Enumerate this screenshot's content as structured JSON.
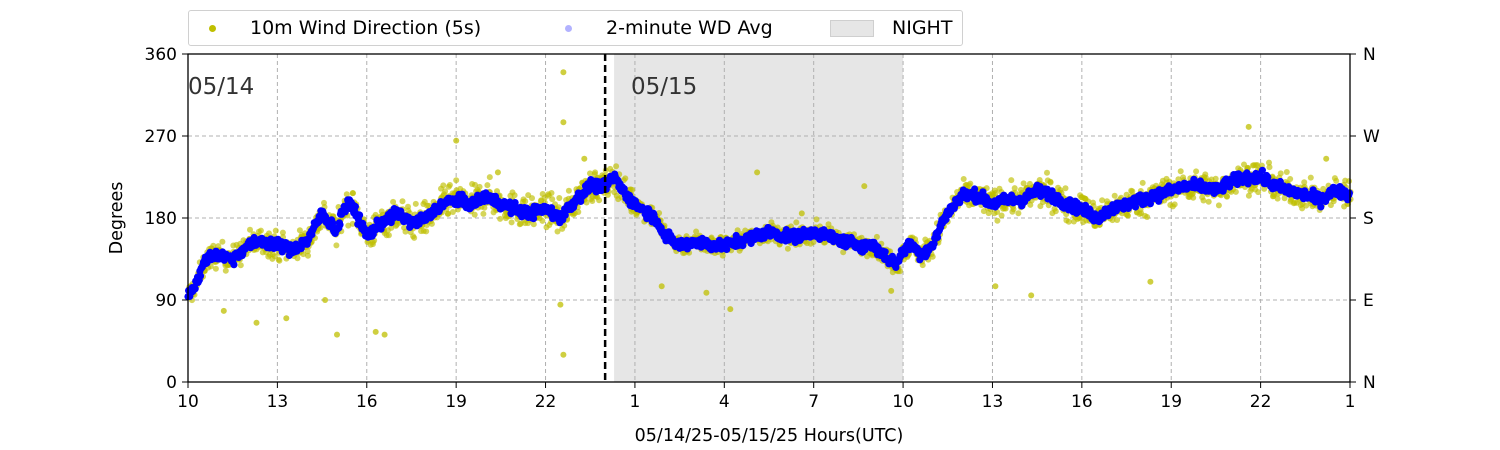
{
  "legend": {
    "items": [
      {
        "label": "10m Wind Direction (5s)",
        "color": "#bfbf00"
      },
      {
        "label": "2-minute WD Avg",
        "color": "#0000ff"
      },
      {
        "label": "NIGHT",
        "color": "#e6e6e6"
      }
    ]
  },
  "chart_data": {
    "type": "scatter",
    "title": "",
    "xlabel": "05/14/25-05/15/25  Hours(UTC)",
    "ylabel": "Degrees",
    "ylim": [
      0,
      360
    ],
    "x_ticks": [
      "10",
      "13",
      "16",
      "19",
      "22",
      "1",
      "4",
      "7",
      "10",
      "13",
      "16",
      "19",
      "22",
      "1"
    ],
    "y_ticks": [
      "0",
      "90",
      "180",
      "270",
      "360"
    ],
    "y2_ticks": [
      "N",
      "E",
      "S",
      "W",
      "N"
    ],
    "grid": true,
    "legend_position": "top",
    "date_labels": [
      {
        "text": "05/14",
        "hour": 10
      },
      {
        "text": "05/15",
        "hour": 24.8
      }
    ],
    "day_boundary_hour": 24.0,
    "night_span": [
      24.3,
      34.0
    ],
    "x_range_hours": [
      10,
      49
    ],
    "series": [
      {
        "name": "2-minute WD Avg",
        "color": "#0000ff",
        "points": [
          [
            10.0,
            95
          ],
          [
            10.3,
            110
          ],
          [
            10.6,
            135
          ],
          [
            11.0,
            140
          ],
          [
            11.5,
            135
          ],
          [
            12.0,
            150
          ],
          [
            12.5,
            155
          ],
          [
            13.0,
            150
          ],
          [
            13.5,
            145
          ],
          [
            14.0,
            155
          ],
          [
            14.5,
            185
          ],
          [
            15.0,
            165
          ],
          [
            15.2,
            190
          ],
          [
            15.5,
            195
          ],
          [
            16.0,
            160
          ],
          [
            16.5,
            175
          ],
          [
            17.0,
            185
          ],
          [
            17.5,
            175
          ],
          [
            18.0,
            180
          ],
          [
            18.5,
            195
          ],
          [
            19.0,
            200
          ],
          [
            19.5,
            195
          ],
          [
            20.0,
            205
          ],
          [
            20.5,
            195
          ],
          [
            21.0,
            190
          ],
          [
            21.5,
            185
          ],
          [
            22.0,
            190
          ],
          [
            22.5,
            180
          ],
          [
            23.0,
            200
          ],
          [
            23.5,
            215
          ],
          [
            24.0,
            215
          ],
          [
            24.3,
            225
          ],
          [
            24.7,
            205
          ],
          [
            25.0,
            195
          ],
          [
            25.5,
            185
          ],
          [
            25.8,
            175
          ],
          [
            26.0,
            160
          ],
          [
            26.5,
            150
          ],
          [
            27.0,
            155
          ],
          [
            27.5,
            150
          ],
          [
            28.0,
            150
          ],
          [
            28.5,
            155
          ],
          [
            29.0,
            160
          ],
          [
            29.5,
            165
          ],
          [
            30.0,
            160
          ],
          [
            30.5,
            160
          ],
          [
            31.0,
            165
          ],
          [
            31.5,
            160
          ],
          [
            32.0,
            155
          ],
          [
            32.5,
            150
          ],
          [
            33.0,
            150
          ],
          [
            33.5,
            135
          ],
          [
            33.8,
            130
          ],
          [
            34.0,
            145
          ],
          [
            34.3,
            150
          ],
          [
            34.6,
            140
          ],
          [
            35.0,
            150
          ],
          [
            35.3,
            175
          ],
          [
            35.7,
            195
          ],
          [
            36.0,
            205
          ],
          [
            36.5,
            205
          ],
          [
            37.0,
            195
          ],
          [
            37.5,
            200
          ],
          [
            38.0,
            200
          ],
          [
            38.5,
            210
          ],
          [
            39.0,
            205
          ],
          [
            39.5,
            195
          ],
          [
            40.0,
            190
          ],
          [
            40.5,
            180
          ],
          [
            41.0,
            190
          ],
          [
            41.5,
            195
          ],
          [
            42.0,
            200
          ],
          [
            42.5,
            205
          ],
          [
            43.0,
            210
          ],
          [
            43.5,
            215
          ],
          [
            44.0,
            215
          ],
          [
            44.5,
            210
          ],
          [
            45.0,
            220
          ],
          [
            45.5,
            225
          ],
          [
            46.0,
            225
          ],
          [
            46.5,
            215
          ],
          [
            47.0,
            210
          ],
          [
            47.5,
            205
          ],
          [
            48.0,
            200
          ],
          [
            48.5,
            210
          ],
          [
            49.0,
            205
          ]
        ]
      },
      {
        "name": "10m Wind Direction (5s)",
        "color": "#bfbf00",
        "spread": [
          [
            10,
            22
          ],
          [
            15,
            30
          ],
          [
            20,
            32
          ],
          [
            24,
            30
          ],
          [
            26,
            20
          ],
          [
            33,
            18
          ],
          [
            35,
            25
          ],
          [
            40,
            30
          ],
          [
            46,
            28
          ],
          [
            49,
            25
          ]
        ],
        "outliers": [
          [
            11.2,
            78
          ],
          [
            12.3,
            65
          ],
          [
            13.3,
            70
          ],
          [
            14.6,
            90
          ],
          [
            15.0,
            52
          ],
          [
            16.3,
            55
          ],
          [
            16.6,
            52
          ],
          [
            19.0,
            265
          ],
          [
            20.4,
            230
          ],
          [
            22.6,
            340
          ],
          [
            22.6,
            285
          ],
          [
            22.6,
            30
          ],
          [
            22.5,
            85
          ],
          [
            23.3,
            245
          ],
          [
            25.9,
            105
          ],
          [
            27.4,
            98
          ],
          [
            28.2,
            80
          ],
          [
            29.1,
            230
          ],
          [
            30.6,
            185
          ],
          [
            32.7,
            215
          ],
          [
            33.6,
            100
          ],
          [
            37.1,
            105
          ],
          [
            38.3,
            95
          ],
          [
            40.3,
            180
          ],
          [
            42.3,
            110
          ],
          [
            45.6,
            280
          ],
          [
            48.2,
            245
          ]
        ]
      }
    ]
  }
}
